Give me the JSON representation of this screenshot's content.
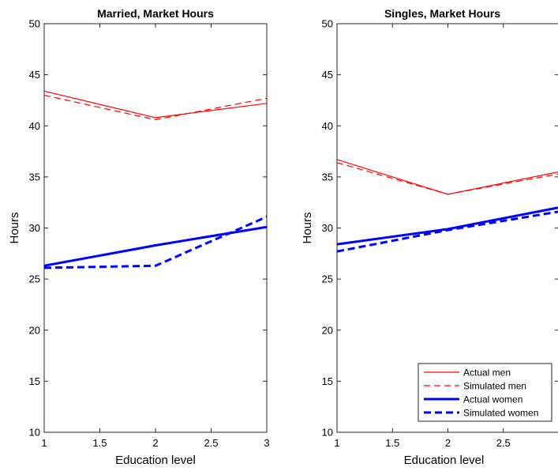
{
  "chart_data": [
    {
      "type": "line",
      "title": "Married, Market Hours",
      "xlabel": "Education level",
      "ylabel": "Hours",
      "xlim": [
        1,
        3
      ],
      "ylim": [
        10,
        50
      ],
      "xticks": [
        "1",
        "1.5",
        "2",
        "2.5",
        "3"
      ],
      "yticks": [
        "10",
        "15",
        "20",
        "25",
        "30",
        "35",
        "40",
        "45",
        "50"
      ],
      "grid": false,
      "x": [
        1,
        2,
        3
      ],
      "series": [
        {
          "name": "Actual men",
          "color": "#ff0000",
          "style": "solid",
          "width": "thin",
          "values": [
            43.4,
            40.8,
            42.2
          ]
        },
        {
          "name": "Simulated men",
          "color": "#ff0000",
          "style": "dashed",
          "width": "thin",
          "values": [
            43.0,
            40.6,
            42.7
          ]
        },
        {
          "name": "Actual women",
          "color": "#0000ff",
          "style": "solid",
          "width": "thick",
          "values": [
            26.3,
            28.3,
            30.1
          ]
        },
        {
          "name": "Simulated women",
          "color": "#0000ff",
          "style": "dashed",
          "width": "thick",
          "values": [
            26.1,
            26.3,
            31.1
          ]
        }
      ]
    },
    {
      "type": "line",
      "title": "Singles, Market Hours",
      "xlabel": "Education level",
      "ylabel": "Hours",
      "xlim": [
        1,
        3
      ],
      "ylim": [
        10,
        50
      ],
      "xticks": [
        "1",
        "1.5",
        "2",
        "2.5"
      ],
      "yticks": [
        "10",
        "15",
        "20",
        "25",
        "30",
        "35",
        "40",
        "45",
        "50"
      ],
      "grid": false,
      "legend": "bottom-right",
      "x": [
        1,
        2,
        3
      ],
      "series": [
        {
          "name": "Actual men",
          "color": "#ff0000",
          "style": "solid",
          "width": "thin",
          "values": [
            36.7,
            33.3,
            35.5
          ]
        },
        {
          "name": "Simulated men",
          "color": "#ff0000",
          "style": "dashed",
          "width": "thin",
          "values": [
            36.4,
            33.3,
            35.3
          ]
        },
        {
          "name": "Actual women",
          "color": "#0000ff",
          "style": "solid",
          "width": "thick",
          "values": [
            28.4,
            29.9,
            32.0
          ]
        },
        {
          "name": "Simulated women",
          "color": "#0000ff",
          "style": "dashed",
          "width": "thick",
          "values": [
            27.7,
            29.8,
            31.6
          ]
        }
      ]
    }
  ]
}
